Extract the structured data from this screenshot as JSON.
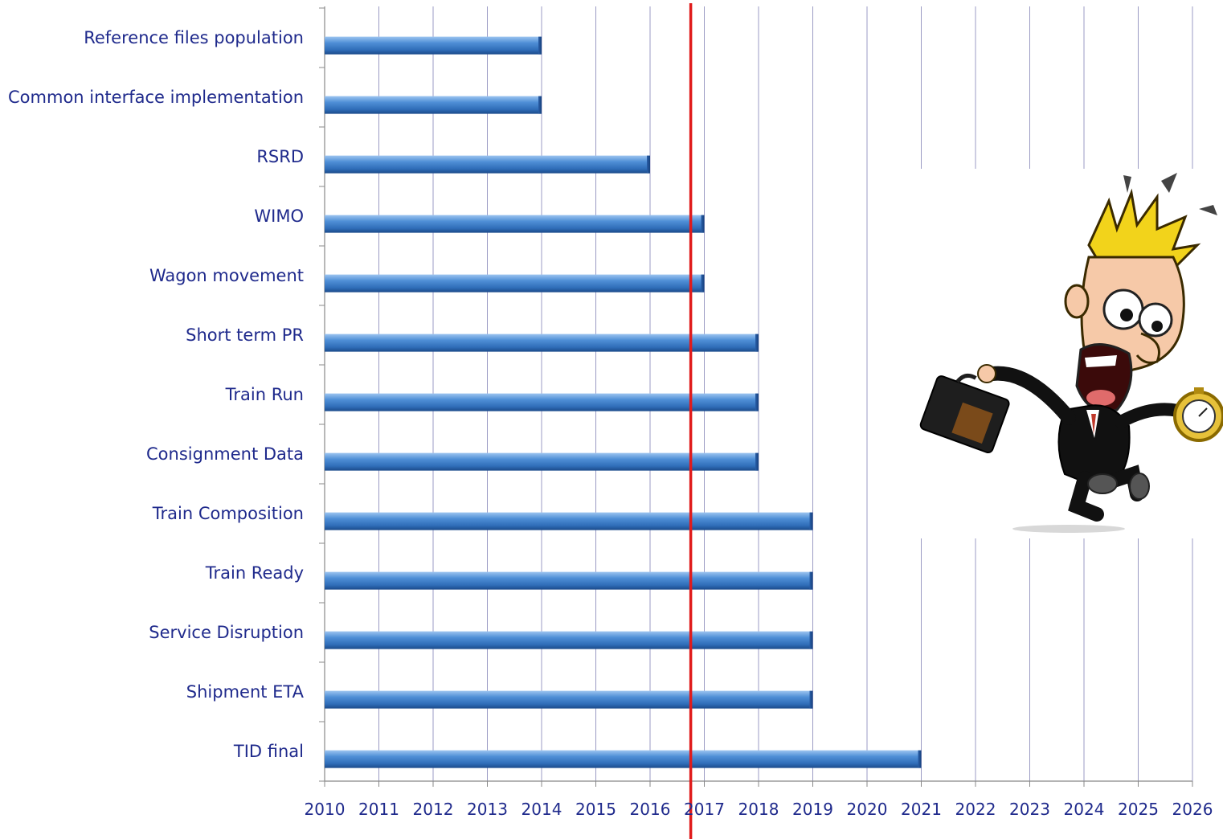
{
  "chart_data": {
    "type": "bar",
    "orientation": "horizontal",
    "start_year": 2010,
    "categories": [
      "Reference files population",
      "Common interface implementation",
      "RSRD",
      "WIMO",
      "Wagon movement",
      "Short term PR",
      "Train Run",
      "Consignment Data",
      "Train Composition",
      "Train Ready",
      "Service Disruption",
      "Shipment ETA",
      "TID final"
    ],
    "values": [
      2014,
      2014,
      2016,
      2017,
      2017,
      2018,
      2018,
      2018,
      2019,
      2019,
      2019,
      2019,
      2021
    ],
    "xlim": [
      2010,
      2026
    ],
    "xticks": [
      "2010",
      "2011",
      "2012",
      "2013",
      "2014",
      "2015",
      "2016",
      "2017",
      "2018",
      "2019",
      "2020",
      "2021",
      "2022",
      "2023",
      "2024",
      "2025",
      "2026"
    ],
    "marker_line": 2016.75,
    "grid": "vertical",
    "colors": {
      "bar": "#3d7cc9",
      "bar_dark": "#1e4f91",
      "marker": "#e01b1b",
      "grid": "#9b9bc4",
      "label": "#1f2a8c"
    }
  },
  "illustration": {
    "icon": "panicked-running-man-with-briefcase-and-stopwatch"
  }
}
